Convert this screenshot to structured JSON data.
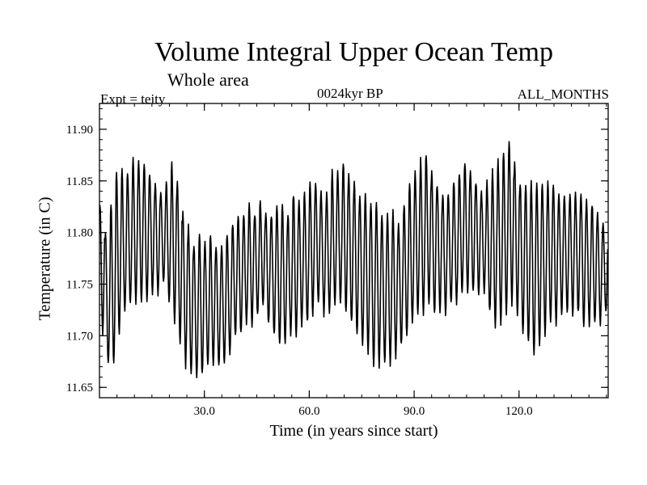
{
  "chart_data": {
    "type": "line",
    "title": "Volume Integral Upper Ocean Temp",
    "subtitle": "Whole area",
    "header_left": "Expt = teity",
    "header_center": "0024kyr BP",
    "header_right": "ALL_MONTHS",
    "xlabel": "Time (in years since start)",
    "ylabel": "Temperature (in C)",
    "xlim": [
      0,
      145.5
    ],
    "ylim": [
      11.64,
      11.925
    ],
    "x_ticks": [
      30,
      60,
      90,
      120
    ],
    "x_tick_labels": [
      "30.0",
      "60.0",
      "90.0",
      "120.0"
    ],
    "y_ticks": [
      11.65,
      11.7,
      11.75,
      11.8,
      11.85,
      11.9
    ],
    "y_tick_labels": [
      "11.65",
      "11.70",
      "11.75",
      "11.80",
      "11.85",
      "11.90"
    ],
    "grid": false,
    "series": [
      {
        "name": "temperature",
        "color": "#000000",
        "sampling": "monthly (12 per year)",
        "annual_max": [
          11.83,
          11.8,
          11.83,
          11.86,
          11.86,
          11.86,
          11.87,
          11.87,
          11.87,
          11.86,
          11.85,
          11.84,
          11.85,
          11.87,
          11.85,
          11.82,
          11.81,
          11.79,
          11.8,
          11.79,
          11.8,
          11.79,
          11.79,
          11.8,
          11.81,
          11.82,
          11.82,
          11.83,
          11.82,
          11.83,
          11.82,
          11.82,
          11.83,
          11.83,
          11.82,
          11.84,
          11.83,
          11.84,
          11.85,
          11.85,
          11.84,
          11.84,
          11.86,
          11.86,
          11.87,
          11.86,
          11.85,
          11.84,
          11.84,
          11.83,
          11.83,
          11.82,
          11.82,
          11.82,
          11.81,
          11.83,
          11.85,
          11.86,
          11.87,
          11.88,
          11.86,
          11.85,
          11.84,
          11.84,
          11.85,
          11.86,
          11.87,
          11.86,
          11.85,
          11.84,
          11.85,
          11.86,
          11.87,
          11.88,
          11.89,
          11.87,
          11.85,
          11.85,
          11.85,
          11.85,
          11.85,
          11.85,
          11.85,
          11.84,
          11.84,
          11.84,
          11.84,
          11.84,
          11.83,
          11.83,
          11.82,
          11.81
        ],
        "annual_min": [
          11.7,
          11.67,
          11.67,
          11.7,
          11.72,
          11.73,
          11.73,
          11.73,
          11.73,
          11.74,
          11.74,
          11.75,
          11.73,
          11.71,
          11.69,
          11.67,
          11.66,
          11.66,
          11.66,
          11.67,
          11.67,
          11.67,
          11.67,
          11.68,
          11.7,
          11.7,
          11.71,
          11.71,
          11.72,
          11.73,
          11.71,
          11.7,
          11.69,
          11.69,
          11.7,
          11.7,
          11.71,
          11.71,
          11.72,
          11.73,
          11.72,
          11.72,
          11.73,
          11.73,
          11.72,
          11.71,
          11.7,
          11.69,
          11.68,
          11.67,
          11.67,
          11.67,
          11.67,
          11.68,
          11.69,
          11.7,
          11.71,
          11.72,
          11.72,
          11.73,
          11.72,
          11.72,
          11.72,
          11.73,
          11.73,
          11.74,
          11.74,
          11.74,
          11.74,
          11.74,
          11.72,
          11.71,
          11.71,
          11.72,
          11.73,
          11.72,
          11.7,
          11.69,
          11.68,
          11.69,
          11.7,
          11.71,
          11.71,
          11.72,
          11.72,
          11.72,
          11.72,
          11.71,
          11.71,
          11.71,
          11.71,
          11.72
        ]
      }
    ]
  }
}
